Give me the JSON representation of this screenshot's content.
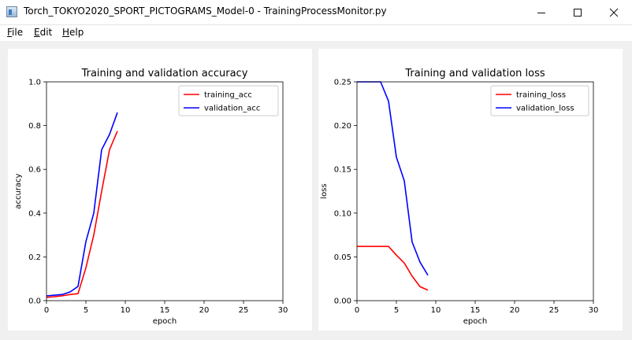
{
  "window": {
    "title": "Torch_TOKYO2020_SPORT_PICTOGRAMS_Model-0 - TrainingProcessMonitor.py",
    "app_icon": "python-window-icon",
    "controls": {
      "minimize": "minimize-icon",
      "maximize": "maximize-icon",
      "close": "close-icon"
    }
  },
  "menu": {
    "items": [
      {
        "mnemonic": "F",
        "rest": "ile"
      },
      {
        "mnemonic": "E",
        "rest": "dit"
      },
      {
        "mnemonic": "H",
        "rest": "elp"
      }
    ]
  },
  "chart_data": [
    {
      "type": "line",
      "title": "Training and validation accuracy",
      "xlabel": "epoch",
      "ylabel": "accuracy",
      "xlim": [
        0,
        30
      ],
      "ylim": [
        0,
        1.0
      ],
      "xticks": [
        "0",
        "5",
        "10",
        "15",
        "20",
        "25",
        "30"
      ],
      "yticks": [
        "0.0",
        "0.2",
        "0.4",
        "0.6",
        "0.8",
        "1.0"
      ],
      "legend": "top-right",
      "grid": false,
      "series": [
        {
          "name": "training_acc",
          "color": "#ff0000",
          "x": [
            0,
            1,
            2,
            3,
            4,
            5,
            6,
            7,
            8,
            9
          ],
          "y": [
            0.015,
            0.018,
            0.022,
            0.028,
            0.032,
            0.15,
            0.3,
            0.5,
            0.69,
            0.775
          ]
        },
        {
          "name": "validation_acc",
          "color": "#0000ff",
          "x": [
            0,
            1,
            2,
            3,
            4,
            5,
            6,
            7,
            8,
            9
          ],
          "y": [
            0.022,
            0.025,
            0.028,
            0.04,
            0.065,
            0.27,
            0.4,
            0.69,
            0.76,
            0.86
          ]
        }
      ]
    },
    {
      "type": "line",
      "title": "Training and validation loss",
      "xlabel": "epoch",
      "ylabel": "loss",
      "xlim": [
        0,
        30
      ],
      "ylim": [
        0,
        0.25
      ],
      "xticks": [
        "0",
        "5",
        "10",
        "15",
        "20",
        "25",
        "30"
      ],
      "yticks": [
        "0.00",
        "0.05",
        "0.10",
        "0.15",
        "0.20",
        "0.25"
      ],
      "legend": "top-right",
      "grid": false,
      "series": [
        {
          "name": "training_loss",
          "color": "#ff0000",
          "x": [
            0,
            1,
            2,
            3,
            4,
            5,
            6,
            7,
            8,
            9
          ],
          "y": [
            0.062,
            0.062,
            0.062,
            0.062,
            0.062,
            0.052,
            0.043,
            0.028,
            0.016,
            0.012
          ]
        },
        {
          "name": "validation_loss",
          "color": "#0000ff",
          "x": [
            0,
            1,
            2,
            3,
            4,
            5,
            6,
            7,
            8,
            9
          ],
          "y": [
            0.25,
            0.25,
            0.25,
            0.25,
            0.228,
            0.164,
            0.137,
            0.067,
            0.044,
            0.029
          ]
        }
      ]
    }
  ]
}
